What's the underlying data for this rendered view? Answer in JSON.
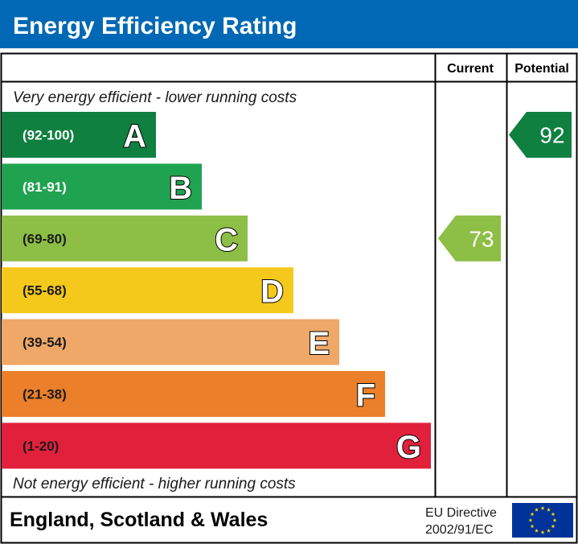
{
  "title": "Energy Efficiency Rating",
  "columns": {
    "current": "Current",
    "potential": "Potential"
  },
  "top_caption": "Very energy efficient - lower running costs",
  "bottom_caption": "Not energy efficient - higher running costs",
  "footer": {
    "region": "England, Scotland & Wales",
    "directive_line1": "EU Directive",
    "directive_line2": "2002/91/EC",
    "flag": "eu-flag-icon"
  },
  "colors": {
    "header": "#0068b4",
    "flag": "#003399",
    "stars": "#ffd400"
  },
  "chart_data": {
    "type": "bar",
    "title": "Energy Efficiency Rating",
    "categories": [
      "A",
      "B",
      "C",
      "D",
      "E",
      "F",
      "G"
    ],
    "ranges": [
      "(92-100)",
      "(81-91)",
      "(69-80)",
      "(55-68)",
      "(39-54)",
      "(21-38)",
      "(1-20)"
    ],
    "colors": [
      "#108040",
      "#20a350",
      "#8dbe45",
      "#f5c91b",
      "#efa868",
      "#eb7f2a",
      "#e1213c"
    ],
    "range_text_colors": [
      "#ffffff",
      "#ffffff",
      "#1a1a1a",
      "#1a1a1a",
      "#1a1a1a",
      "#1a1a1a",
      "#1a1a1a"
    ],
    "current": {
      "value": 73,
      "band": "C",
      "color": "#8dbe45"
    },
    "potential": {
      "value": 92,
      "band": "A",
      "color": "#108040"
    }
  }
}
